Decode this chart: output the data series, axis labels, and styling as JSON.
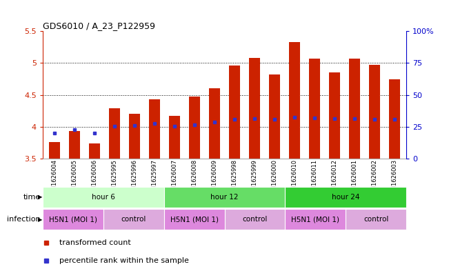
{
  "title": "GDS6010 / A_23_P122959",
  "samples": [
    "GSM1626004",
    "GSM1626005",
    "GSM1626006",
    "GSM1625995",
    "GSM1625996",
    "GSM1625997",
    "GSM1626007",
    "GSM1626008",
    "GSM1626009",
    "GSM1625998",
    "GSM1625999",
    "GSM1626000",
    "GSM1626010",
    "GSM1626011",
    "GSM1626012",
    "GSM1626001",
    "GSM1626002",
    "GSM1626003"
  ],
  "bar_values": [
    3.76,
    3.93,
    3.74,
    4.29,
    4.2,
    4.43,
    4.17,
    4.47,
    4.6,
    4.96,
    5.08,
    4.82,
    5.33,
    5.07,
    4.85,
    5.07,
    4.97,
    4.74
  ],
  "blue_values": [
    3.9,
    3.95,
    3.9,
    4.01,
    4.02,
    4.05,
    4.01,
    4.03,
    4.07,
    4.12,
    4.13,
    4.12,
    4.15,
    4.14,
    4.13,
    4.13,
    4.12,
    4.12
  ],
  "ylim": [
    3.5,
    5.5
  ],
  "yticks": [
    3.5,
    4.0,
    4.5,
    5.0,
    5.5
  ],
  "ytick_labels": [
    "3.5",
    "4",
    "4.5",
    "5",
    "5.5"
  ],
  "right_yticks": [
    0,
    25,
    50,
    75,
    100
  ],
  "right_ytick_labels": [
    "0",
    "25",
    "50",
    "75",
    "100%"
  ],
  "bar_color": "#cc2200",
  "blue_color": "#3333cc",
  "bar_width": 0.55,
  "grid_values": [
    4.0,
    4.5,
    5.0
  ],
  "time_groups": [
    {
      "label": "hour 6",
      "start": 0,
      "end": 6,
      "color": "#ccffcc"
    },
    {
      "label": "hour 12",
      "start": 6,
      "end": 12,
      "color": "#66dd66"
    },
    {
      "label": "hour 24",
      "start": 12,
      "end": 18,
      "color": "#33cc33"
    }
  ],
  "infection_groups": [
    {
      "label": "H5N1 (MOI 1)",
      "start": 0,
      "end": 3,
      "color": "#dd88dd"
    },
    {
      "label": "control",
      "start": 3,
      "end": 6,
      "color": "#ddaadd"
    },
    {
      "label": "H5N1 (MOI 1)",
      "start": 6,
      "end": 9,
      "color": "#dd88dd"
    },
    {
      "label": "control",
      "start": 9,
      "end": 12,
      "color": "#ddaadd"
    },
    {
      "label": "H5N1 (MOI 1)",
      "start": 12,
      "end": 15,
      "color": "#dd88dd"
    },
    {
      "label": "control",
      "start": 15,
      "end": 18,
      "color": "#ddaadd"
    }
  ],
  "legend_items": [
    {
      "label": "transformed count",
      "color": "#cc2200",
      "marker": "s"
    },
    {
      "label": "percentile rank within the sample",
      "color": "#3333cc",
      "marker": "s"
    }
  ],
  "left_axis_color": "#cc2200",
  "right_axis_color": "#0000cc",
  "bg_color": "#ffffff",
  "time_label": "time",
  "infection_label": "infection",
  "n_samples": 18
}
